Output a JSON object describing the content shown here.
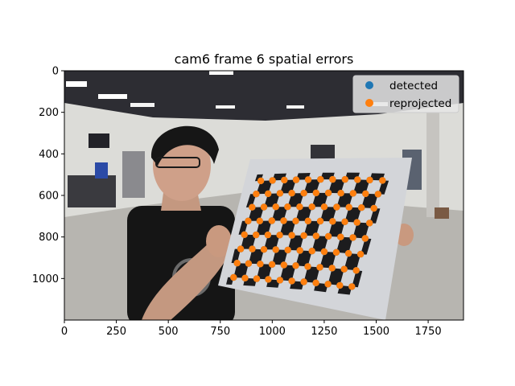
{
  "chart_data": {
    "type": "scatter",
    "title": "cam6 frame 6 spatial errors",
    "xlabel": "",
    "ylabel": "",
    "xlim": [
      0,
      1920
    ],
    "ylim": [
      1200,
      0
    ],
    "y_inverted": true,
    "xticks": [
      0,
      250,
      500,
      750,
      1000,
      1250,
      1500,
      1750
    ],
    "yticks": [
      0,
      200,
      400,
      600,
      800,
      1000
    ],
    "grid": false,
    "legend_position": "top-right",
    "background": "camera photo of a person holding a checkerboard calibration target",
    "series": [
      {
        "name": "detected",
        "color": "#1f77b4",
        "note": "drawn underneath reprojected markers",
        "points": [
          [
            945,
            530
          ],
          [
            1001,
            528
          ],
          [
            1058,
            526
          ],
          [
            1115,
            525
          ],
          [
            1173,
            524
          ],
          [
            1232,
            523
          ],
          [
            1290,
            523
          ],
          [
            1350,
            523
          ],
          [
            1410,
            524
          ],
          [
            1469,
            526
          ],
          [
            1530,
            528
          ],
          [
            923,
            593
          ],
          [
            980,
            592
          ],
          [
            1037,
            590
          ],
          [
            1094,
            589
          ],
          [
            1152,
            589
          ],
          [
            1211,
            588
          ],
          [
            1270,
            588
          ],
          [
            1330,
            589
          ],
          [
            1389,
            590
          ],
          [
            1449,
            592
          ],
          [
            1509,
            594
          ],
          [
            903,
            657
          ],
          [
            960,
            656
          ],
          [
            1017,
            655
          ],
          [
            1074,
            655
          ],
          [
            1132,
            655
          ],
          [
            1191,
            655
          ],
          [
            1250,
            655
          ],
          [
            1310,
            656
          ],
          [
            1369,
            657
          ],
          [
            1429,
            659
          ],
          [
            1489,
            662
          ],
          [
            884,
            723
          ],
          [
            940,
            723
          ],
          [
            998,
            722
          ],
          [
            1055,
            722
          ],
          [
            1113,
            723
          ],
          [
            1172,
            723
          ],
          [
            1231,
            724
          ],
          [
            1290,
            725
          ],
          [
            1349,
            727
          ],
          [
            1408,
            730
          ],
          [
            1468,
            733
          ],
          [
            866,
            789
          ],
          [
            922,
            790
          ],
          [
            979,
            790
          ],
          [
            1036,
            791
          ],
          [
            1094,
            792
          ],
          [
            1152,
            793
          ],
          [
            1211,
            795
          ],
          [
            1270,
            797
          ],
          [
            1329,
            800
          ],
          [
            1388,
            803
          ],
          [
            1447,
            807
          ],
          [
            848,
            858
          ],
          [
            904,
            858
          ],
          [
            960,
            860
          ],
          [
            1017,
            861
          ],
          [
            1075,
            863
          ],
          [
            1133,
            865
          ],
          [
            1191,
            868
          ],
          [
            1250,
            871
          ],
          [
            1308,
            874
          ],
          [
            1367,
            879
          ],
          [
            1425,
            883
          ],
          [
            831,
            926
          ],
          [
            886,
            928
          ],
          [
            942,
            930
          ],
          [
            999,
            932
          ],
          [
            1056,
            935
          ],
          [
            1113,
            938
          ],
          [
            1171,
            942
          ],
          [
            1229,
            946
          ],
          [
            1288,
            950
          ],
          [
            1346,
            955
          ],
          [
            1404,
            961
          ],
          [
            814,
            995
          ],
          [
            869,
            998
          ],
          [
            925,
            1001
          ],
          [
            981,
            1004
          ],
          [
            1037,
            1008
          ],
          [
            1094,
            1012
          ],
          [
            1152,
            1016
          ],
          [
            1210,
            1021
          ],
          [
            1268,
            1027
          ],
          [
            1325,
            1033
          ],
          [
            1383,
            1039
          ]
        ]
      },
      {
        "name": "reprojected",
        "color": "#ff7f0e",
        "points": [
          [
            945,
            530
          ],
          [
            1001,
            528
          ],
          [
            1058,
            526
          ],
          [
            1115,
            525
          ],
          [
            1173,
            524
          ],
          [
            1232,
            523
          ],
          [
            1290,
            523
          ],
          [
            1350,
            523
          ],
          [
            1410,
            524
          ],
          [
            1469,
            526
          ],
          [
            1530,
            528
          ],
          [
            923,
            593
          ],
          [
            980,
            592
          ],
          [
            1037,
            590
          ],
          [
            1094,
            589
          ],
          [
            1152,
            589
          ],
          [
            1211,
            588
          ],
          [
            1270,
            588
          ],
          [
            1330,
            589
          ],
          [
            1389,
            590
          ],
          [
            1449,
            592
          ],
          [
            1509,
            594
          ],
          [
            903,
            657
          ],
          [
            960,
            656
          ],
          [
            1017,
            655
          ],
          [
            1074,
            655
          ],
          [
            1132,
            655
          ],
          [
            1191,
            655
          ],
          [
            1250,
            655
          ],
          [
            1310,
            656
          ],
          [
            1369,
            657
          ],
          [
            1429,
            659
          ],
          [
            1489,
            662
          ],
          [
            884,
            723
          ],
          [
            940,
            723
          ],
          [
            998,
            722
          ],
          [
            1055,
            722
          ],
          [
            1113,
            723
          ],
          [
            1172,
            723
          ],
          [
            1231,
            724
          ],
          [
            1290,
            725
          ],
          [
            1349,
            727
          ],
          [
            1408,
            730
          ],
          [
            1468,
            733
          ],
          [
            866,
            789
          ],
          [
            922,
            790
          ],
          [
            979,
            790
          ],
          [
            1036,
            791
          ],
          [
            1094,
            792
          ],
          [
            1152,
            793
          ],
          [
            1211,
            795
          ],
          [
            1270,
            797
          ],
          [
            1329,
            800
          ],
          [
            1388,
            803
          ],
          [
            1447,
            807
          ],
          [
            848,
            858
          ],
          [
            904,
            858
          ],
          [
            960,
            860
          ],
          [
            1017,
            861
          ],
          [
            1075,
            863
          ],
          [
            1133,
            865
          ],
          [
            1191,
            868
          ],
          [
            1250,
            871
          ],
          [
            1308,
            874
          ],
          [
            1367,
            879
          ],
          [
            1425,
            883
          ],
          [
            831,
            926
          ],
          [
            886,
            928
          ],
          [
            942,
            930
          ],
          [
            999,
            932
          ],
          [
            1056,
            935
          ],
          [
            1113,
            938
          ],
          [
            1171,
            942
          ],
          [
            1229,
            946
          ],
          [
            1288,
            950
          ],
          [
            1346,
            955
          ],
          [
            1404,
            961
          ],
          [
            814,
            995
          ],
          [
            869,
            998
          ],
          [
            925,
            1001
          ],
          [
            981,
            1004
          ],
          [
            1037,
            1008
          ],
          [
            1094,
            1012
          ],
          [
            1152,
            1016
          ],
          [
            1210,
            1021
          ],
          [
            1268,
            1027
          ],
          [
            1325,
            1033
          ],
          [
            1383,
            1039
          ]
        ]
      }
    ]
  },
  "scene_colors": {
    "ceiling": "#2b2b2f",
    "wall": "#dcdcd8",
    "floor": "#b7b5b0",
    "board": "#d2d4d8",
    "square": "#1c1c1e",
    "shirt": "#141414",
    "skin": "#c99b83",
    "hair": "#161616"
  }
}
